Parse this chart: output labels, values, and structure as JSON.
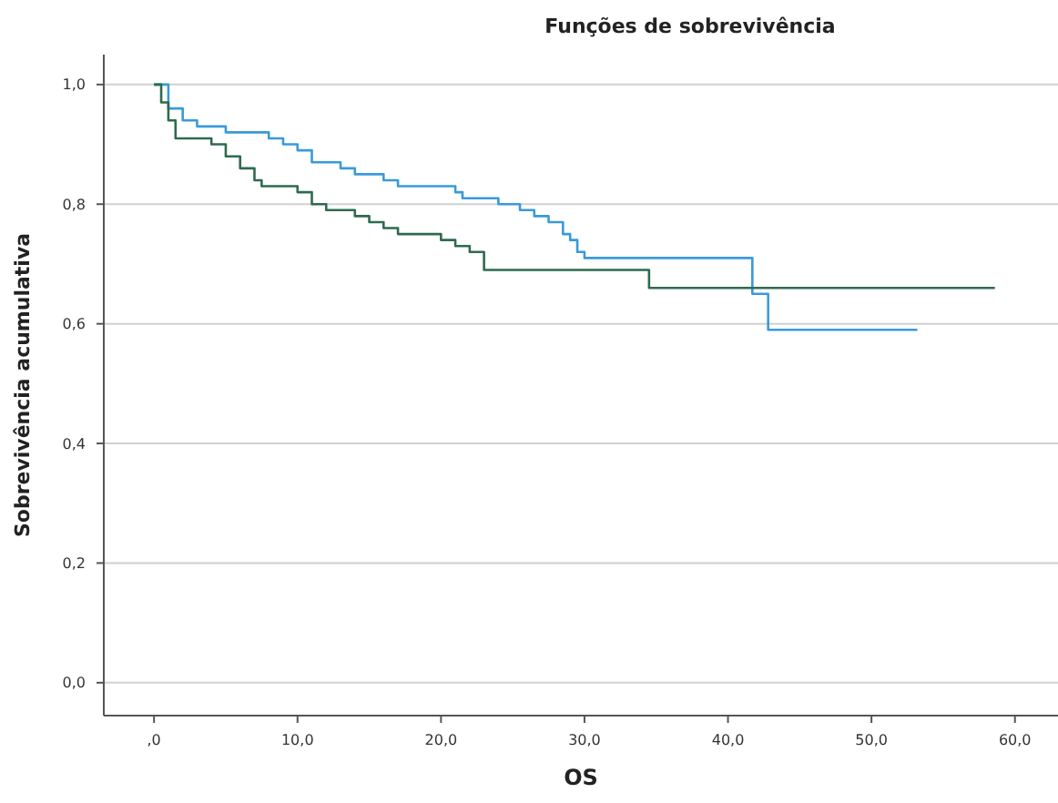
{
  "chart_data": {
    "type": "step",
    "title": "Funções de sobrevivência",
    "xlabel": "OS",
    "ylabel": "Sobrevivência acumulativa",
    "xlim": [
      -3.5,
      63
    ],
    "ylim": [
      -0.055,
      1.05
    ],
    "xticks": [
      {
        "value": 0,
        "label": ",0"
      },
      {
        "value": 10,
        "label": "10,0"
      },
      {
        "value": 20,
        "label": "20,0"
      },
      {
        "value": 30,
        "label": "30,0"
      },
      {
        "value": 40,
        "label": "40,0"
      },
      {
        "value": 50,
        "label": "50,0"
      },
      {
        "value": 60,
        "label": "60,0"
      }
    ],
    "yticks": [
      {
        "value": 0,
        "label": "0,0"
      },
      {
        "value": 0.2,
        "label": "0,2"
      },
      {
        "value": 0.4,
        "label": "0,4"
      },
      {
        "value": 0.6,
        "label": "0,6"
      },
      {
        "value": 0.8,
        "label": "0,8"
      },
      {
        "value": 1,
        "label": "1,0"
      }
    ],
    "grid": "y",
    "series": [
      {
        "color": "#3a9ad9",
        "x": [
          0,
          1,
          2,
          3,
          5,
          8,
          9,
          10,
          11,
          13,
          14,
          16,
          17,
          21,
          21.5,
          24,
          25.5,
          26.5,
          27.5,
          28.5,
          29,
          29.5,
          30,
          41.7,
          42.8,
          53.2
        ],
        "values": [
          1,
          0.96,
          0.94,
          0.93,
          0.92,
          0.91,
          0.9,
          0.89,
          0.87,
          0.86,
          0.85,
          0.84,
          0.83,
          0.82,
          0.81,
          0.8,
          0.79,
          0.78,
          0.77,
          0.75,
          0.74,
          0.72,
          0.71,
          0.65,
          0.59,
          0.59
        ]
      },
      {
        "color": "#2e6b4e",
        "x": [
          0,
          0.5,
          1,
          1.5,
          4,
          5,
          6,
          7,
          7.5,
          10,
          11,
          12,
          14,
          15,
          16,
          17,
          20,
          21,
          22,
          23,
          34.5,
          58.6
        ],
        "values": [
          1,
          0.97,
          0.94,
          0.91,
          0.9,
          0.88,
          0.86,
          0.84,
          0.83,
          0.82,
          0.8,
          0.79,
          0.78,
          0.77,
          0.76,
          0.75,
          0.74,
          0.73,
          0.72,
          0.69,
          0.66,
          0.66
        ]
      }
    ]
  }
}
